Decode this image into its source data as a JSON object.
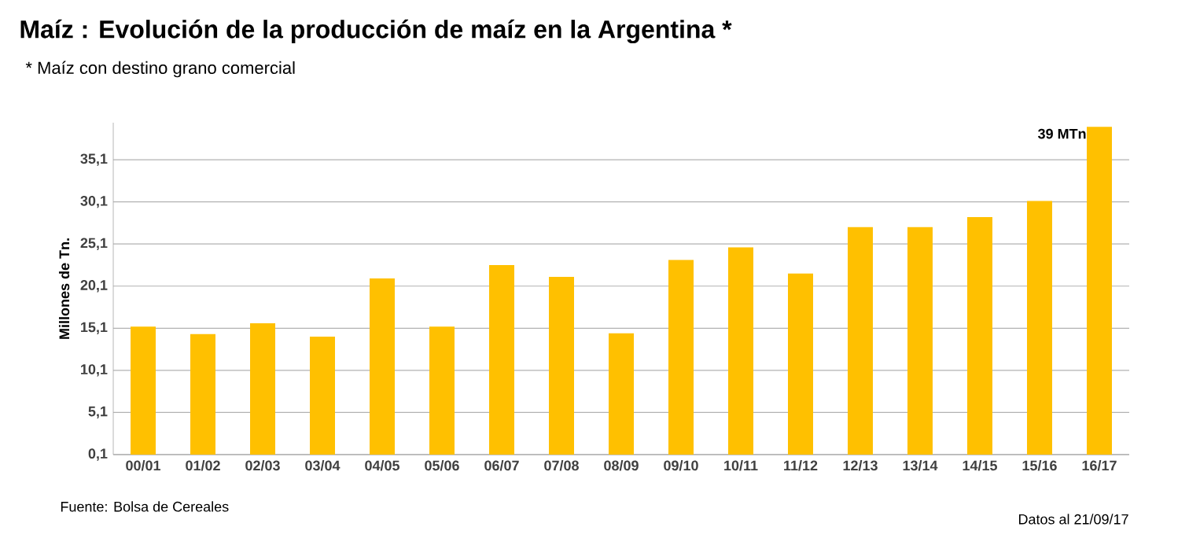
{
  "chart_data": {
    "type": "bar",
    "title": "Maíz : Evolución de la producción de maíz en la Argentina *",
    "subtitle": "*   Maíz con destino grano comercial",
    "ylabel": "Millones de Tn.",
    "categories": [
      "00/01",
      "01/02",
      "02/03",
      "03/04",
      "04/05",
      "05/06",
      "06/07",
      "07/08",
      "08/09",
      "09/10",
      "10/11",
      "11/12",
      "12/13",
      "13/14",
      "14/15",
      "15/16",
      "16/17"
    ],
    "values": [
      15.3,
      14.4,
      15.7,
      14.1,
      21.0,
      15.3,
      22.6,
      21.2,
      14.5,
      23.2,
      24.7,
      21.6,
      27.1,
      27.1,
      28.3,
      30.2,
      39
    ],
    "color": "#ffc000",
    "ylim": [
      0.1,
      39.5
    ],
    "yticks": [
      {
        "value": 0.1,
        "label": "0,1"
      },
      {
        "value": 5.1,
        "label": "5,1"
      },
      {
        "value": 10.1,
        "label": "10,1"
      },
      {
        "value": 15.1,
        "label": "15,1"
      },
      {
        "value": 20.1,
        "label": "20,1"
      },
      {
        "value": 25.1,
        "label": "25,1"
      },
      {
        "value": 30.1,
        "label": "30,1"
      },
      {
        "value": 35.1,
        "label": "35,1"
      }
    ],
    "grid": "y",
    "annotations": [
      {
        "text": "39 MTn",
        "x": "16/17",
        "y": 39
      },
      "Fuente: Bolsa de Cereales",
      "Datos al  21/09/17"
    ]
  }
}
